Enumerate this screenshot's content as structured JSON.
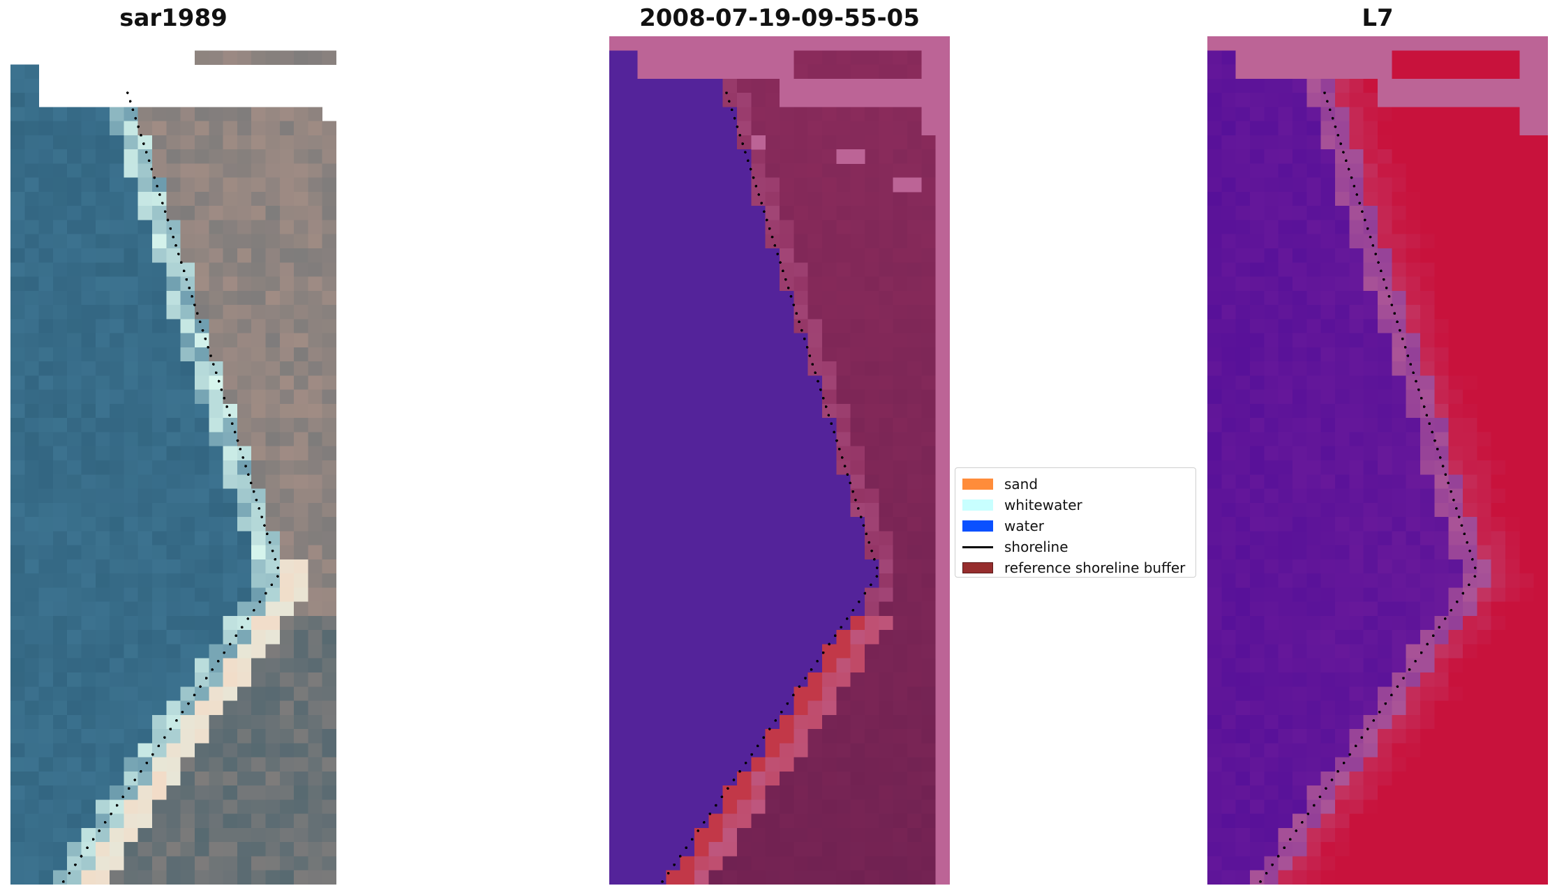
{
  "panels": [
    {
      "title": "sar1989",
      "style": "rgb"
    },
    {
      "title": "2008-07-19-09-55-05",
      "style": "classified"
    },
    {
      "title": "L7",
      "style": "index"
    }
  ],
  "legend": {
    "items": [
      {
        "label": "sand",
        "color": "#ff8c3a",
        "kind": "patch"
      },
      {
        "label": "whitewater",
        "color": "#c8ffff",
        "kind": "patch"
      },
      {
        "label": "water",
        "color": "#0a50ff",
        "kind": "patch"
      },
      {
        "label": "shoreline",
        "color": "#000000",
        "kind": "line"
      },
      {
        "label": "reference shoreline buffer",
        "color": "#962d2d",
        "kind": "patch"
      }
    ]
  },
  "colors": {
    "water_class": "#54239a",
    "land_tint": "#8c2c5c",
    "nodata_pink": "#bc6496",
    "buffer_red": "#c23848",
    "index_purple": "#6a1a9a",
    "index_red": "#c8123c"
  }
}
